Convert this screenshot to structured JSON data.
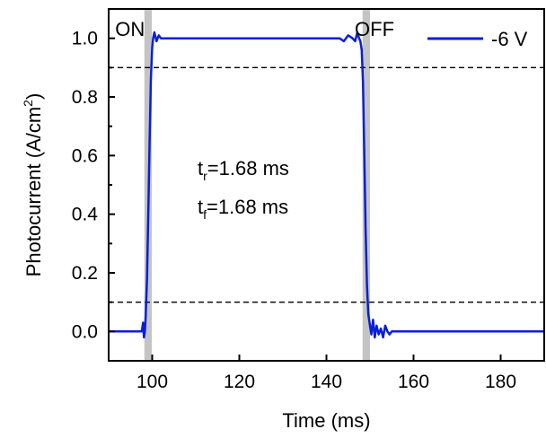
{
  "chart_data": {
    "type": "line",
    "xlabel": "Time (ms)",
    "ylabel_main": "Photocurrent (A/cm",
    "ylabel_sup": "2",
    "ylabel_close": ")",
    "xlim": [
      90,
      190
    ],
    "ylim": [
      -0.1,
      1.1
    ],
    "xticks": [
      100,
      120,
      140,
      160,
      180
    ],
    "xtick_labels": [
      "100",
      "120",
      "140",
      "160",
      "180"
    ],
    "yticks": [
      0.0,
      0.2,
      0.4,
      0.6,
      0.8,
      1.0
    ],
    "ytick_labels": [
      "0.0",
      "0.2",
      "0.4",
      "0.6",
      "0.8",
      "1.0"
    ],
    "legend": {
      "placement": "top-right",
      "label": "-6 V",
      "color": "#0a1fd6"
    },
    "series": [
      {
        "name": "-6 V",
        "color": "#0a1fd6",
        "x": [
          90,
          96,
          97.6,
          97.9,
          98.1,
          98.3,
          98.5,
          98.8,
          99.1,
          99.4,
          99.7,
          100.0,
          100.2,
          100.5,
          101,
          101.5,
          102,
          103,
          104,
          106,
          110,
          120,
          130,
          140,
          143,
          144,
          145,
          146,
          146.6,
          147.1,
          147.5,
          147.8,
          148.1,
          148.4,
          148.7,
          149.0,
          149.3,
          149.6,
          150.0,
          150.3,
          150.7,
          151.1,
          151.5,
          152,
          152.5,
          153,
          153.5,
          154,
          154.5,
          155,
          156,
          160,
          170,
          180,
          190
        ],
        "y": [
          0.0,
          0.0,
          0.0,
          0.03,
          -0.02,
          0.0,
          0.05,
          0.18,
          0.4,
          0.65,
          0.86,
          0.97,
          1.0,
          1.02,
          0.99,
          1.01,
          1.0,
          1.0,
          1.0,
          1.0,
          1.0,
          1.0,
          1.0,
          1.0,
          1.0,
          0.99,
          1.01,
          1.0,
          0.99,
          1.02,
          1.0,
          0.99,
          0.96,
          0.85,
          0.6,
          0.35,
          0.16,
          0.06,
          0.02,
          -0.01,
          0.04,
          -0.02,
          0.02,
          -0.01,
          0.01,
          -0.02,
          0.02,
          0.0,
          -0.01,
          0.0,
          0.0,
          0.0,
          0.0,
          0.0,
          0.0
        ]
      }
    ],
    "reference_lines": [
      0.9,
      0.1
    ],
    "shaded_regions": [
      [
        98.2,
        99.9
      ],
      [
        148.3,
        150.0
      ]
    ],
    "region_labels": [
      {
        "text": "ON",
        "x": 91.5
      },
      {
        "text": "OFF",
        "x": 146.5
      }
    ],
    "annotations": {
      "rise_prefix": "t",
      "rise_sub": "r",
      "rise_value": "=1.68 ms",
      "fall_prefix": "t",
      "fall_sub": "f",
      "fall_value": "=1.68 ms"
    }
  }
}
